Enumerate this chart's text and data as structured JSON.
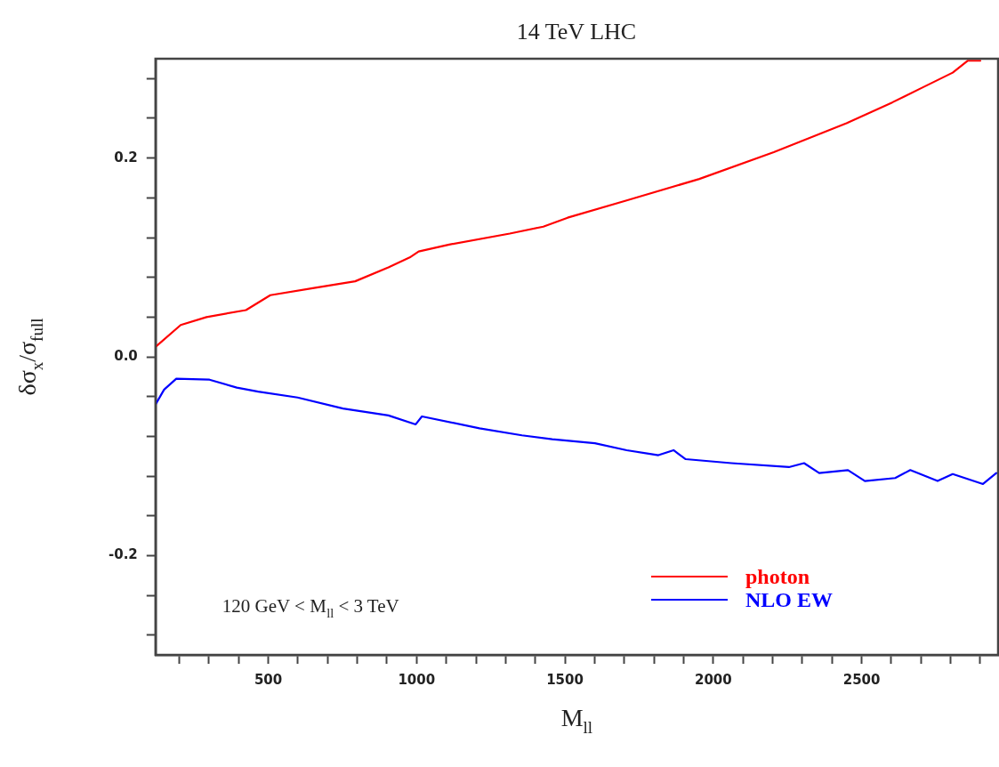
{
  "chart_data": {
    "type": "line",
    "title": "14 TeV LHC",
    "xlabel": "M$_{ll}$",
    "ylabel": "δσ$_{x}$/σ$_{full}$",
    "annotations": [
      "120 GeV < M$_{ll}$ < 3 TeV"
    ],
    "xlim": [
      120,
      2960
    ],
    "xticks": [
      {
        "value": 200,
        "label": null
      },
      {
        "value": 300,
        "label": null
      },
      {
        "value": 400,
        "label": null
      },
      500,
      {
        "value": 600,
        "label": null
      },
      {
        "value": 700,
        "label": null
      },
      {
        "value": 800,
        "label": null
      },
      {
        "value": 900,
        "label": null
      },
      1000,
      {
        "value": 1100,
        "label": null
      },
      {
        "value": 1200,
        "label": null
      },
      {
        "value": 1300,
        "label": null
      },
      {
        "value": 1400,
        "label": null
      },
      1500,
      {
        "value": 1600,
        "label": null
      },
      {
        "value": 1700,
        "label": null
      },
      {
        "value": 1800,
        "label": null
      },
      {
        "value": 1900,
        "label": null
      },
      2000,
      {
        "value": 2100,
        "label": null
      },
      {
        "value": 2200,
        "label": null
      },
      {
        "value": 2300,
        "label": null
      },
      {
        "value": 2400,
        "label": null
      },
      2500,
      {
        "value": 2600,
        "label": null
      },
      {
        "value": 2700,
        "label": null
      },
      {
        "value": 2800,
        "label": null
      },
      {
        "value": 2900,
        "label": null
      }
    ],
    "ylim": [
      -0.3,
      0.3
    ],
    "yticks": [
      {
        "value": -0.28,
        "label": null
      },
      {
        "value": -0.24,
        "label": null
      },
      -0.2,
      {
        "value": -0.16,
        "label": null
      },
      {
        "value": -0.12,
        "label": null
      },
      {
        "value": -0.08,
        "label": null
      },
      {
        "value": -0.04,
        "label": null
      },
      {
        "value": 0,
        "label": "0.0"
      },
      {
        "value": 0.04,
        "label": null
      },
      {
        "value": 0.08,
        "label": null
      },
      {
        "value": 0.12,
        "label": null
      },
      {
        "value": 0.16,
        "label": null
      },
      0.2,
      {
        "value": 0.24,
        "label": null
      },
      {
        "value": 0.28,
        "label": null
      }
    ],
    "grid": false,
    "legend": "bottom right",
    "marker": "none",
    "line_style": "solid",
    "series": [
      {
        "name": "photon",
        "color": "#ff0000",
        "x": [
          120,
          205,
          292,
          425,
          507,
          650,
          793,
          905,
          977,
          1007,
          1110,
          1314,
          1427,
          1509,
          1703,
          1953,
          2204,
          2449,
          2603,
          2705,
          2807,
          2858,
          2900
        ],
        "values": [
          0.01,
          0.032,
          0.04,
          0.047,
          0.062,
          0.069,
          0.076,
          0.09,
          0.1,
          0.106,
          0.113,
          0.124,
          0.131,
          0.14,
          0.157,
          0.179,
          0.206,
          0.235,
          0.256,
          0.271,
          0.286,
          0.298,
          0.298
        ]
      },
      {
        "name": "NLO EW",
        "color": "#0000ff",
        "x": [
          120,
          149,
          190,
          302,
          394,
          466,
          599,
          752,
          905,
          997,
          1018,
          1212,
          1355,
          1457,
          1601,
          1708,
          1815,
          1866,
          1907,
          2061,
          2255,
          2306,
          2357,
          2454,
          2511,
          2613,
          2664,
          2756,
          2807,
          2909,
          2954
        ],
        "values": [
          -0.048,
          -0.033,
          -0.022,
          -0.023,
          -0.031,
          -0.035,
          -0.041,
          -0.052,
          -0.059,
          -0.068,
          -0.06,
          -0.072,
          -0.079,
          -0.083,
          -0.087,
          -0.094,
          -0.099,
          -0.094,
          -0.103,
          -0.107,
          -0.111,
          -0.107,
          -0.117,
          -0.114,
          -0.125,
          -0.122,
          -0.114,
          -0.125,
          -0.118,
          -0.128,
          -0.117
        ]
      }
    ]
  }
}
